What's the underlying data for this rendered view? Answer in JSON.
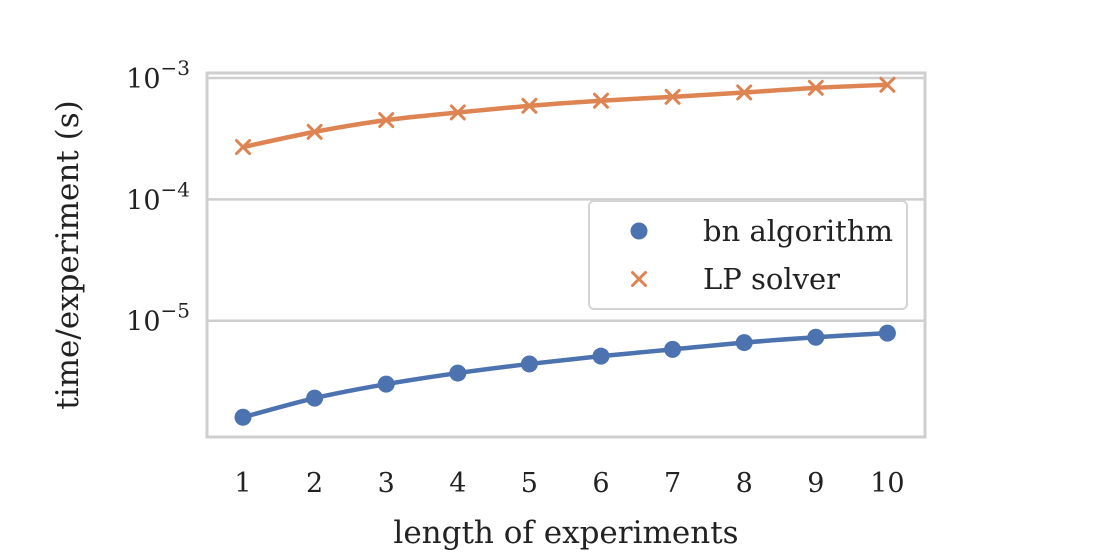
{
  "chart_data": {
    "type": "line",
    "title": "",
    "xlabel": "length of experiments",
    "ylabel": "time/experiment (s)",
    "x": [
      1,
      2,
      3,
      4,
      5,
      6,
      7,
      8,
      9,
      10
    ],
    "y_scale": "log",
    "ylim": [
      1.1e-06,
      0.0011
    ],
    "y_ticks": [
      {
        "value": 1e-05,
        "base": "10",
        "exp": "−5"
      },
      {
        "value": 0.0001,
        "base": "10",
        "exp": "−4"
      },
      {
        "value": 0.001,
        "base": "10",
        "exp": "−3"
      }
    ],
    "grid": "horizontal",
    "legend_position": "center-right",
    "series": [
      {
        "name": "bn algorithm",
        "marker": "circle",
        "color": "#4C72B0",
        "values": [
          1.6e-06,
          2.3e-06,
          3e-06,
          3.7e-06,
          4.4e-06,
          5.1e-06,
          5.8e-06,
          6.6e-06,
          7.3e-06,
          7.9e-06
        ]
      },
      {
        "name": "LP solver",
        "marker": "x",
        "color": "#DD8452",
        "values": [
          0.00027,
          0.00036,
          0.00045,
          0.00052,
          0.00059,
          0.00065,
          0.0007,
          0.00076,
          0.00083,
          0.00088
        ]
      }
    ]
  }
}
